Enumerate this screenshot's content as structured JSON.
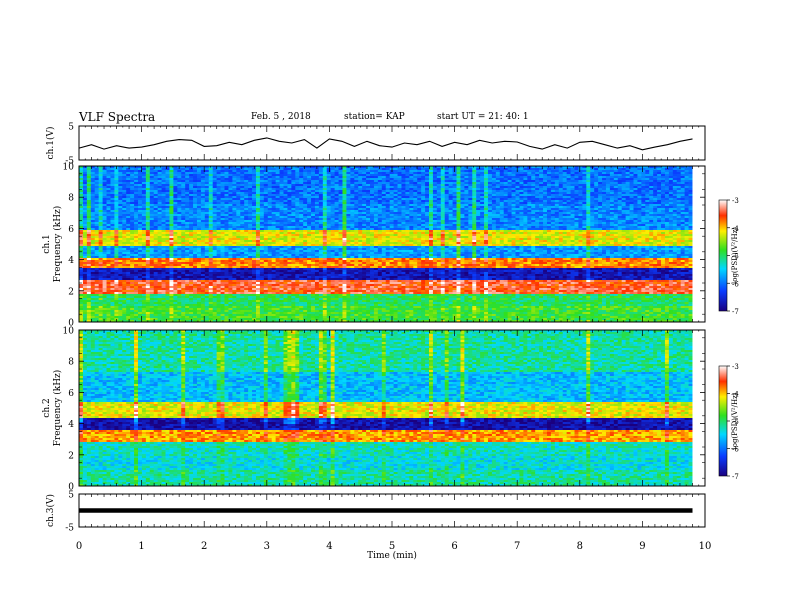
{
  "header": {
    "title": "VLF Spectra",
    "date": "Feb. 5 , 2018",
    "station": "station= KAP",
    "start": "start  UT  =   21: 40: 1"
  },
  "chart_data": [
    {
      "type": "line",
      "name": "ch1-waveform",
      "ylabel": "ch.1(V)",
      "ylim": [
        -5,
        5
      ],
      "yticks": [
        "5",
        "-5"
      ],
      "x": [
        0,
        0.2,
        0.4,
        0.6,
        0.8,
        1.0,
        1.2,
        1.4,
        1.6,
        1.8,
        2.0,
        2.2,
        2.4,
        2.6,
        2.8,
        3.0,
        3.2,
        3.4,
        3.6,
        3.8,
        4.0,
        4.2,
        4.4,
        4.6,
        4.8,
        5.0,
        5.2,
        5.4,
        5.6,
        5.8,
        6.0,
        6.2,
        6.4,
        6.6,
        6.8,
        7.0,
        7.2,
        7.4,
        7.6,
        7.8,
        8.0,
        8.2,
        8.4,
        8.6,
        8.8,
        9.0,
        9.2,
        9.4,
        9.6,
        9.8
      ],
      "y": [
        -1.5,
        -0.5,
        -1.8,
        -0.8,
        -1.5,
        -1.2,
        -0.5,
        0.5,
        1.0,
        0.8,
        -1.0,
        -0.8,
        0.2,
        -0.5,
        0.8,
        1.5,
        0.5,
        0.0,
        1.0,
        -1.5,
        1.2,
        0.5,
        -1.0,
        0.5,
        -0.8,
        -1.2,
        0.0,
        -0.5,
        0.5,
        -1.0,
        0.2,
        -0.5,
        0.8,
        0.0,
        0.5,
        0.3,
        -1.0,
        -1.8,
        -0.5,
        -1.5,
        0.2,
        0.5,
        -0.5,
        -1.5,
        -0.8,
        -2.0,
        -1.2,
        -0.5,
        0.5,
        1.2
      ]
    },
    {
      "type": "heatmap",
      "name": "ch1-spectrogram",
      "ylabel": "ch.1\nFrequency (kHz)",
      "ylim": [
        0,
        10
      ],
      "yticks": [
        "0",
        "2",
        "4",
        "6",
        "8",
        "10"
      ],
      "band_levels_khz": [
        {
          "f": 0.5,
          "level": -4.8
        },
        {
          "f": 1.5,
          "level": -5.0
        },
        {
          "f": 2.2,
          "level": -3.5
        },
        {
          "f": 3.1,
          "level": -6.7
        },
        {
          "f": 3.8,
          "level": -3.8
        },
        {
          "f": 4.5,
          "level": -5.8
        },
        {
          "f": 5.2,
          "level": -4.2
        },
        {
          "f": 6.5,
          "level": -5.9
        },
        {
          "f": 8.5,
          "level": -6.0
        }
      ],
      "colorbar": {
        "label": "log(PSD)(V²/Hz)",
        "ticks": [
          "-3",
          "-4",
          "-5",
          "-6",
          "-7"
        ],
        "range": [
          -7,
          -3
        ]
      }
    },
    {
      "type": "heatmap",
      "name": "ch2-spectrogram",
      "ylabel": "ch.2\nFrequency (kHz)",
      "ylim": [
        0,
        10
      ],
      "yticks": [
        "0",
        "2",
        "4",
        "6",
        "8",
        "10"
      ],
      "band_levels_khz": [
        {
          "f": 0.5,
          "level": -5.2
        },
        {
          "f": 1.5,
          "level": -5.4
        },
        {
          "f": 2.4,
          "level": -5.3
        },
        {
          "f": 3.3,
          "level": -3.9
        },
        {
          "f": 3.9,
          "level": -6.8
        },
        {
          "f": 4.8,
          "level": -4.2
        },
        {
          "f": 6.0,
          "level": -5.6
        },
        {
          "f": 8.5,
          "level": -5.2
        }
      ],
      "colorbar": {
        "label": "log(PSD)(V²/Hz)",
        "ticks": [
          "-3",
          "-4",
          "-5",
          "-6",
          "-7"
        ],
        "range": [
          -7,
          -3
        ]
      }
    },
    {
      "type": "line",
      "name": "ch3-waveform",
      "ylabel": "ch.3(V)",
      "ylim": [
        -5,
        5
      ],
      "yticks": [
        "5",
        "-5"
      ],
      "x": [
        0,
        9.8
      ],
      "y": [
        0,
        0
      ]
    }
  ],
  "xaxis": {
    "label": "Time (min)",
    "ticks": [
      "0",
      "1",
      "2",
      "3",
      "4",
      "5",
      "6",
      "7",
      "8",
      "9",
      "10"
    ],
    "range": [
      0,
      10
    ]
  }
}
